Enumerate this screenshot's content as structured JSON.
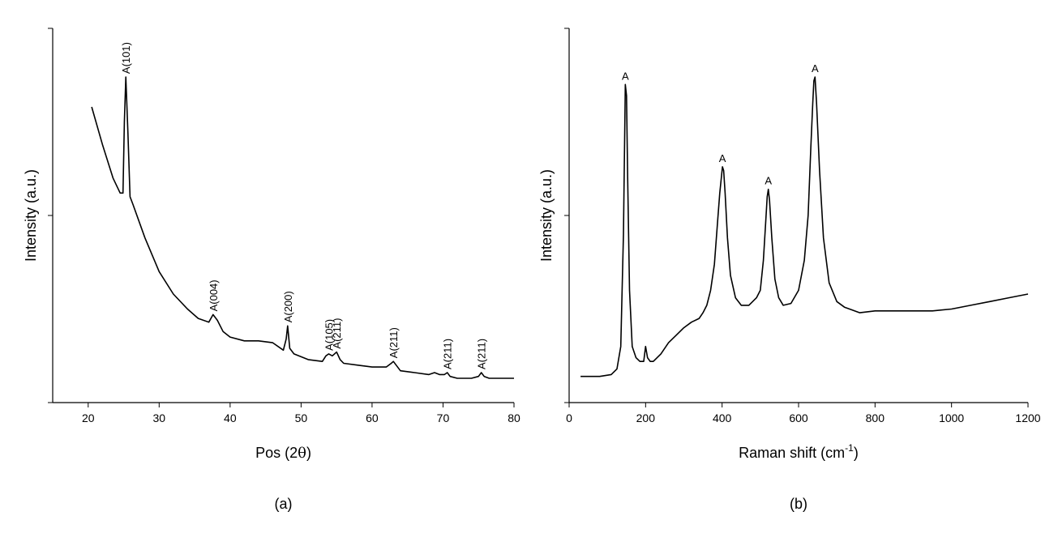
{
  "chart_data": [
    {
      "type": "line",
      "panel_label": "(a)",
      "xlabel_prefix": "Pos (2",
      "xlabel_symbol": "θ",
      "xlabel_suffix": ")",
      "ylabel": "Intensity (a.u.)",
      "xlim": [
        15,
        80
      ],
      "ylim": [
        0,
        100
      ],
      "xticks": [
        20,
        30,
        40,
        50,
        60,
        70,
        80
      ],
      "yticks_labeled": false,
      "grid": false,
      "series": [
        {
          "x": [
            20.5,
            22,
            23.5,
            24.5,
            24.9,
            25.1,
            25.3,
            25.6,
            25.9,
            26.3,
            28,
            30,
            32,
            34,
            35.5,
            37,
            37.6,
            38.2,
            39,
            40,
            42,
            44,
            46,
            47.5,
            47.9,
            48.1,
            48.4,
            49,
            51,
            53,
            53.5,
            53.9,
            54.4,
            55,
            55.5,
            56,
            58,
            60,
            62,
            62.7,
            63,
            63.4,
            64,
            66,
            68,
            68.8,
            69.5,
            70.2,
            70.6,
            71,
            72,
            74,
            75,
            75.4,
            75.8,
            76.5,
            78,
            80
          ],
          "y": [
            79,
            69,
            60,
            56,
            56,
            75,
            87,
            72,
            55,
            53,
            44,
            35,
            29,
            25,
            22.5,
            21.5,
            23.5,
            22,
            19,
            17.5,
            16.5,
            16.5,
            16,
            14,
            17,
            20.5,
            14.5,
            13,
            11.5,
            11,
            12.5,
            13,
            12.5,
            13.5,
            11.5,
            10.5,
            10,
            9.5,
            9.5,
            10.5,
            11,
            10,
            8.5,
            8,
            7.5,
            8,
            7.5,
            7.5,
            8,
            7,
            6.5,
            6.5,
            7,
            8,
            7,
            6.5,
            6.5,
            6.5
          ]
        }
      ],
      "annotations": [
        {
          "text": "A(101)",
          "x": 25.3,
          "y": 87
        },
        {
          "text": "A(004)",
          "x": 37.6,
          "y": 23.5
        },
        {
          "text": "A(200)",
          "x": 48.1,
          "y": 20.5
        },
        {
          "text": "A(105)",
          "x": 53.9,
          "y": 13
        },
        {
          "text": "A(211)",
          "x": 55.0,
          "y": 13.5
        },
        {
          "text": "A(211)",
          "x": 63.0,
          "y": 11
        },
        {
          "text": "A(211)",
          "x": 70.6,
          "y": 8
        },
        {
          "text": "A(211)",
          "x": 75.4,
          "y": 8
        }
      ]
    },
    {
      "type": "line",
      "panel_label": "(b)",
      "xlabel_prefix": "Raman shift (cm",
      "xlabel_sup": "-1",
      "xlabel_suffix": ")",
      "ylabel": "Intensity (a.u.)",
      "xlim": [
        0,
        1200
      ],
      "ylim": [
        0,
        100
      ],
      "xticks": [
        0,
        200,
        400,
        600,
        800,
        1000,
        1200
      ],
      "xtick_labels": [
        "0",
        "200",
        "400",
        "600",
        "800",
        "1000",
        "1200"
      ],
      "yticks_labeled": false,
      "grid": false,
      "series": [
        {
          "x": [
            30,
            80,
            110,
            125,
            135,
            142,
            147,
            150,
            153,
            158,
            165,
            175,
            185,
            195,
            200,
            205,
            212,
            220,
            240,
            260,
            280,
            300,
            320,
            340,
            350,
            360,
            370,
            380,
            388,
            394,
            398,
            401,
            404,
            408,
            414,
            422,
            435,
            450,
            470,
            490,
            500,
            508,
            514,
            518,
            521,
            524,
            530,
            538,
            548,
            560,
            580,
            600,
            615,
            625,
            632,
            637,
            640,
            643,
            647,
            655,
            665,
            680,
            700,
            720,
            760,
            800,
            850,
            900,
            950,
            1000,
            1050,
            1100,
            1150,
            1200
          ],
          "y": [
            7,
            7,
            7.5,
            9,
            15,
            45,
            85,
            82,
            60,
            30,
            15,
            12,
            11,
            11,
            15,
            12,
            11,
            11,
            13,
            16,
            18,
            20,
            21.5,
            22.5,
            24,
            26,
            30,
            37,
            48,
            56,
            60,
            63,
            62,
            56,
            44,
            34,
            28,
            26,
            26,
            28,
            30,
            38,
            48,
            55,
            57,
            54,
            44,
            33,
            28,
            26,
            26.5,
            30,
            38,
            50,
            68,
            80,
            86,
            87,
            80,
            62,
            44,
            32,
            27,
            25.5,
            24,
            24.5,
            24.5,
            24.5,
            24.5,
            25,
            26,
            27,
            28,
            29
          ]
        }
      ],
      "annotations": [
        {
          "text": "A",
          "x": 147,
          "y": 85
        },
        {
          "text": "A",
          "x": 401,
          "y": 63
        },
        {
          "text": "A",
          "x": 521,
          "y": 57
        },
        {
          "text": "A",
          "x": 643,
          "y": 87
        }
      ]
    }
  ]
}
